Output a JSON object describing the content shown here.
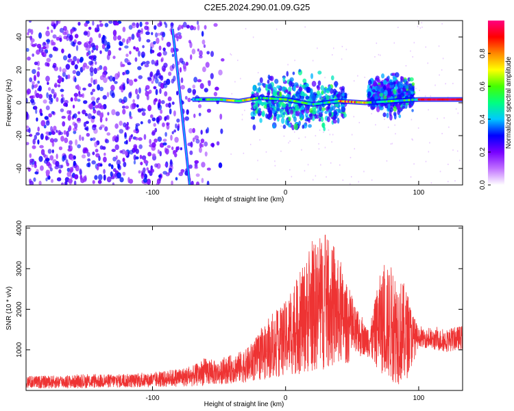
{
  "page_title": "C2E5.2024.290.01.09.G25",
  "chart_data": [
    {
      "type": "heatmap",
      "title": "C2E5.2024.290.01.09.G25",
      "xlabel": "Height of straight line (km)",
      "ylabel": "Frequency (Hz)",
      "xlim": [
        -195,
        133
      ],
      "ylim": [
        -50,
        50
      ],
      "x_ticks": [
        -100,
        0,
        100
      ],
      "y_ticks": [
        -40,
        -20,
        0,
        20,
        40
      ],
      "colorbar": {
        "label": "Normalized spectral amplitude",
        "range": [
          0.0,
          1.0
        ],
        "ticks": [
          0.0,
          0.2,
          0.4,
          0.6,
          0.8
        ],
        "colormap": [
          "#ffffff",
          "#c070ff",
          "#7700ff",
          "#0000ff",
          "#00c8ff",
          "#00ff80",
          "#44ff00",
          "#ffff00",
          "#ff8800",
          "#ff0000",
          "#ff0080"
        ]
      },
      "features": {
        "noise_region_x": [
          -195,
          -45
        ],
        "dispersed_trace": [
          [
            -85,
            45
          ],
          [
            -82,
            25
          ],
          [
            -80,
            10
          ],
          [
            -78,
            -5
          ],
          [
            -76,
            -20
          ],
          [
            -74,
            -35
          ],
          [
            -72,
            -50
          ]
        ],
        "carrier_line": [
          [
            -70,
            2
          ],
          [
            -50,
            2
          ],
          [
            -35,
            1
          ],
          [
            -20,
            3
          ],
          [
            0,
            2
          ],
          [
            20,
            -1
          ],
          [
            40,
            1
          ],
          [
            60,
            0
          ],
          [
            80,
            1
          ],
          [
            100,
            2
          ],
          [
            133,
            2
          ]
        ],
        "bursts": [
          {
            "x": [
              -25,
              45
            ],
            "y": [
              -25,
              25
            ],
            "intensity": 0.35
          },
          {
            "x": [
              62,
              96
            ],
            "y": [
              -12,
              22
            ],
            "intensity": 0.3
          }
        ]
      },
      "grid": false
    },
    {
      "type": "line",
      "xlabel": "Height of straight line (km)",
      "ylabel": "SNR (10 * v/v)",
      "xlim": [
        -195,
        133
      ],
      "ylim": [
        0,
        4050
      ],
      "x_ticks": [
        -100,
        0,
        100
      ],
      "y_ticks": [
        1000,
        2000,
        3000,
        4000
      ],
      "color": "#ee3333",
      "envelope": {
        "x": [
          -195,
          -150,
          -100,
          -70,
          -60,
          -50,
          -40,
          -30,
          -20,
          -10,
          0,
          10,
          20,
          30,
          40,
          50,
          60,
          65,
          70,
          75,
          80,
          85,
          90,
          95,
          100,
          110,
          120,
          133
        ],
        "low": [
          50,
          60,
          80,
          100,
          120,
          150,
          180,
          200,
          250,
          300,
          350,
          400,
          450,
          500,
          600,
          700,
          900,
          700,
          500,
          300,
          200,
          150,
          200,
          600,
          1100,
          1000,
          950,
          1000
        ],
        "high": [
          350,
          380,
          420,
          600,
          800,
          700,
          900,
          1000,
          1400,
          1800,
          2200,
          2800,
          3600,
          3800,
          3200,
          2200,
          1600,
          1800,
          2800,
          3000,
          3100,
          2800,
          2600,
          2000,
          1500,
          1500,
          1500,
          1600
        ]
      },
      "grid": false
    }
  ]
}
